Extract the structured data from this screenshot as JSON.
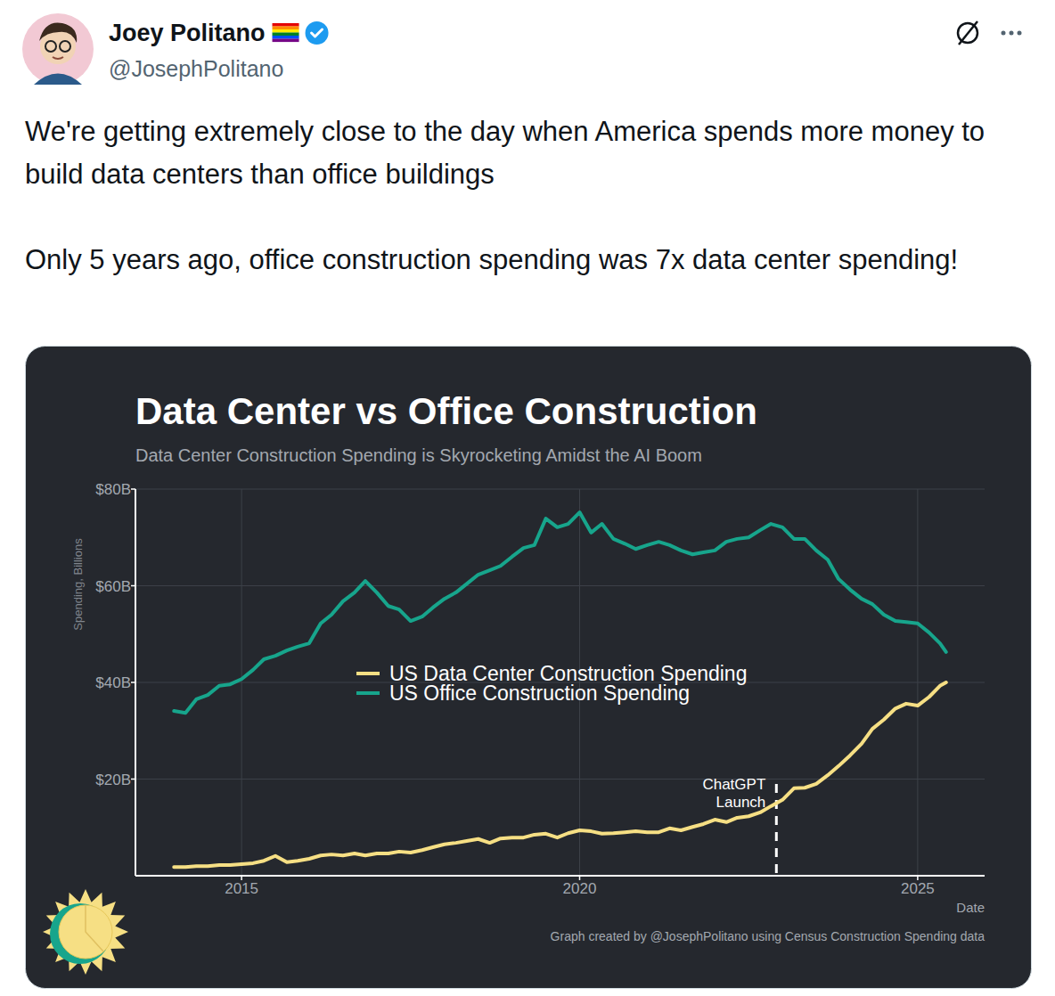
{
  "tweet": {
    "author": "Joey Politano",
    "handle": "@JosephPolitano",
    "text": [
      "We're getting extremely close to the day when America spends more money to build data centers than office buildings",
      "Only 5 years ago, office construction spending was 7x data center spending!"
    ]
  },
  "chart_data": {
    "type": "line",
    "title": "Data Center vs Office Construction",
    "subtitle": "Data Center Construction Spending is Skyrocketing Amidst the AI Boom",
    "ylabel": "Spending, Billions",
    "xlabel": "Date",
    "caption": "Graph created by @JosephPolitano using Census Construction Spending data",
    "x": [
      2014.0,
      2014.17,
      2014.33,
      2014.5,
      2014.67,
      2014.83,
      2015.0,
      2015.17,
      2015.33,
      2015.5,
      2015.67,
      2015.83,
      2016.0,
      2016.17,
      2016.33,
      2016.5,
      2016.67,
      2016.83,
      2017.0,
      2017.17,
      2017.33,
      2017.5,
      2017.67,
      2017.83,
      2018.0,
      2018.17,
      2018.33,
      2018.5,
      2018.67,
      2018.83,
      2019.0,
      2019.17,
      2019.33,
      2019.5,
      2019.67,
      2019.83,
      2020.0,
      2020.17,
      2020.33,
      2020.5,
      2020.67,
      2020.83,
      2021.0,
      2021.17,
      2021.33,
      2021.5,
      2021.67,
      2021.83,
      2022.0,
      2022.17,
      2022.33,
      2022.5,
      2022.67,
      2022.83,
      2023.0,
      2023.17,
      2023.33,
      2023.5,
      2023.67,
      2023.83,
      2024.0,
      2024.17,
      2024.33,
      2024.5,
      2024.67,
      2024.83,
      2025.0,
      2025.17,
      2025.33,
      2025.42
    ],
    "series": [
      {
        "name": "US Data Center Construction Spending",
        "color": "#f6df84",
        "values": [
          1.8,
          1.8,
          2.0,
          2.0,
          2.2,
          2.2,
          2.4,
          2.6,
          3.1,
          4.1,
          2.8,
          3.1,
          3.5,
          4.2,
          4.4,
          4.2,
          4.6,
          4.2,
          4.6,
          4.6,
          5.0,
          4.8,
          5.3,
          5.9,
          6.5,
          6.8,
          7.2,
          7.6,
          6.8,
          7.7,
          7.9,
          7.9,
          8.5,
          8.7,
          7.9,
          8.8,
          9.4,
          9.2,
          8.7,
          8.8,
          9.0,
          9.2,
          9.0,
          9.0,
          9.8,
          9.4,
          10.1,
          10.7,
          11.6,
          11.1,
          12.0,
          12.3,
          13.1,
          14.4,
          15.7,
          18.1,
          18.2,
          19.0,
          20.8,
          22.7,
          24.9,
          27.3,
          30.4,
          32.3,
          34.6,
          35.6,
          35.2,
          37.0,
          39.3,
          40.0
        ]
      },
      {
        "name": "US Office Construction Spending",
        "color": "#17a58c",
        "values": [
          34.1,
          33.7,
          36.5,
          37.4,
          39.3,
          39.6,
          40.7,
          42.6,
          44.8,
          45.5,
          46.6,
          47.4,
          48.1,
          52.2,
          54.0,
          56.8,
          58.6,
          61.0,
          58.6,
          55.8,
          55.1,
          52.7,
          53.6,
          55.5,
          57.3,
          58.6,
          60.4,
          62.3,
          63.2,
          64.1,
          66.0,
          67.8,
          68.4,
          73.9,
          72.1,
          72.8,
          75.2,
          71.0,
          72.8,
          69.7,
          68.7,
          67.6,
          68.4,
          69.1,
          68.4,
          67.3,
          66.5,
          66.9,
          67.3,
          69.1,
          69.7,
          70.0,
          71.5,
          72.8,
          72.1,
          69.7,
          69.7,
          67.3,
          65.4,
          61.4,
          59.2,
          57.3,
          56.2,
          54.0,
          52.7,
          52.5,
          52.2,
          50.3,
          48.1,
          46.3
        ]
      }
    ],
    "xlim": [
      2013.43,
      2025.99
    ],
    "xticks": [
      2015,
      2020,
      2025
    ],
    "ylim": [
      0,
      80
    ],
    "yticks": [
      {
        "value": 20,
        "label": "$20B"
      },
      {
        "value": 40,
        "label": "$40B"
      },
      {
        "value": 60,
        "label": "$60B"
      },
      {
        "value": 80,
        "label": "$80B"
      }
    ],
    "grid": true,
    "legend": "center",
    "annotations": [
      {
        "x": 2022.91,
        "label": "ChatGPT Launch",
        "line_style": "dashed"
      }
    ]
  }
}
